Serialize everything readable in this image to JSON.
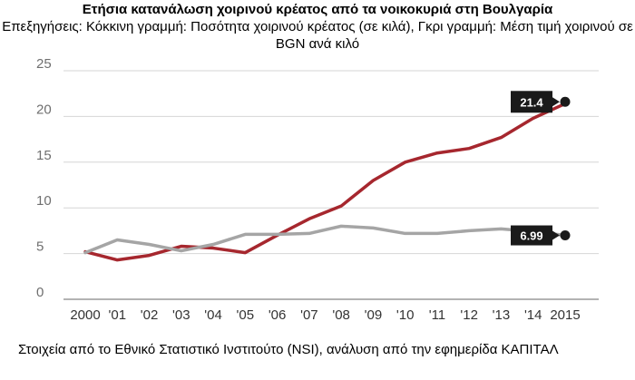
{
  "header": {
    "title": "Ετήσια κατανάλωση χοιρινού κρέατος από τα νοικοκυριά στη Βουλγαρία",
    "subtitle": "Επεξηγήσεις: Κόκκινη γραμμή: Ποσότητα χοιρινού κρέατος (σε κιλά), Γκρι γραμμή: Μέση τιμή χοιρινού σε BGN ανά κιλό"
  },
  "footer": {
    "source": "Στοιχεία από το Εθνικό Στατιστικό Ινστιτούτο (NSI), ανάλυση από την εφημερίδα ΚΑΠΙΤΑΛ"
  },
  "chart_data": {
    "type": "line",
    "categories": [
      "2000",
      "'01",
      "'02",
      "'03",
      "'04",
      "'05",
      "'06",
      "'07",
      "'08",
      "'09",
      "'10",
      "'11",
      "'12",
      "'13",
      "'14",
      "2015"
    ],
    "ylim": [
      0,
      25
    ],
    "yticks": [
      0,
      5,
      10,
      15,
      20,
      25
    ],
    "grid": true,
    "series": [
      {
        "color": "#a6272e",
        "values": [
          5.2,
          4.3,
          4.8,
          5.8,
          5.6,
          5.1,
          7.0,
          8.8,
          10.2,
          13.0,
          15.0,
          16.0,
          16.5,
          17.7,
          19.8,
          21.4
        ],
        "callout": "21.4"
      },
      {
        "color": "#a5a5a5",
        "values": [
          5.1,
          6.5,
          6.0,
          5.3,
          6.0,
          7.1,
          7.1,
          7.2,
          8.0,
          7.8,
          7.2,
          7.2,
          7.5,
          7.7,
          7.4,
          6.99
        ],
        "callout": "6.99"
      }
    ]
  }
}
